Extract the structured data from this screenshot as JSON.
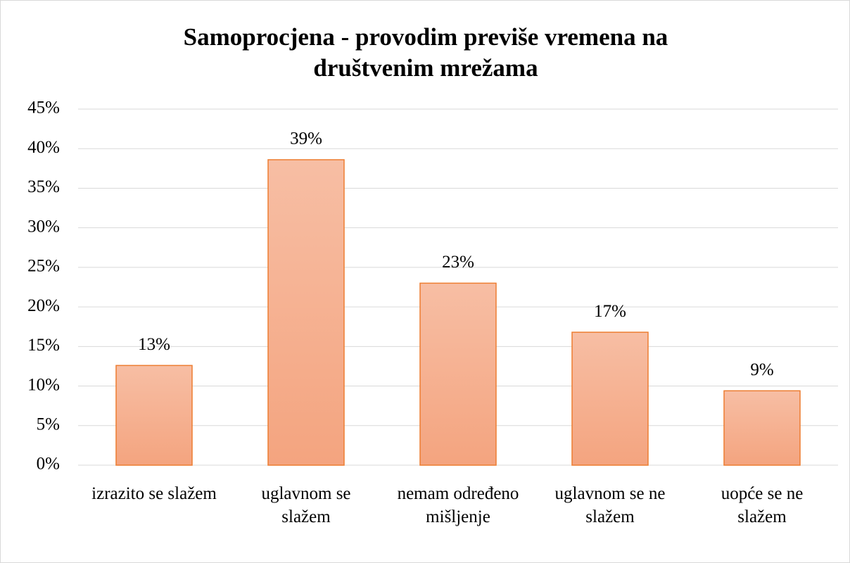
{
  "chart_data": {
    "type": "bar",
    "title": "Samoprocjena - provodim previše vremena na društvenim mrežama",
    "categories": [
      "izrazito se slažem",
      "uglavnom se slažem",
      "nemam određeno mišljenje",
      "uglavnom se ne slažem",
      "uopće se ne slažem"
    ],
    "values": [
      12.6,
      38.6,
      23.0,
      16.8,
      9.4
    ],
    "value_labels": [
      "13%",
      "39%",
      "23%",
      "17%",
      "9%"
    ],
    "color": "#f4a582",
    "ylim": [
      0,
      45
    ],
    "yticks": [
      {
        "value": 0,
        "label": "0%"
      },
      {
        "value": 5,
        "label": "5%"
      },
      {
        "value": 10,
        "label": "10%"
      },
      {
        "value": 15,
        "label": "15%"
      },
      {
        "value": 20,
        "label": "20%"
      },
      {
        "value": 25,
        "label": "25%"
      },
      {
        "value": 30,
        "label": "30%"
      },
      {
        "value": 35,
        "label": "35%"
      },
      {
        "value": 40,
        "label": "40%"
      },
      {
        "value": 45,
        "label": "45%"
      }
    ],
    "grid": true
  }
}
